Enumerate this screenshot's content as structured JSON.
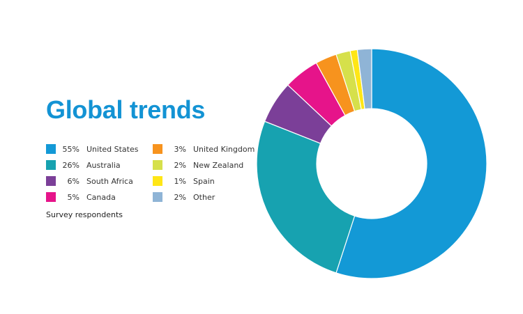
{
  "title": "Global trends",
  "caption": "Survey respondents",
  "colors": {
    "title": "#1393d4",
    "background": "#ffffff"
  },
  "chart_data": {
    "type": "pie",
    "variant": "donut",
    "categories": [
      "United States",
      "Australia",
      "South Africa",
      "Canada",
      "United Kingdom",
      "New Zealand",
      "Spain",
      "Other"
    ],
    "values": [
      55,
      26,
      6,
      5,
      3,
      2,
      1,
      2
    ],
    "value_labels": [
      "55%",
      "26%",
      "6%",
      "5%",
      "3%",
      "2%",
      "1%",
      "2%"
    ],
    "colors": [
      "#1399d6",
      "#17a2b0",
      "#7b3f98",
      "#e6148a",
      "#f7931e",
      "#d6e04b",
      "#ffe616",
      "#8fb4d6"
    ],
    "unit": "%",
    "legend_position": "left",
    "start": "top",
    "direction": "clockwise"
  }
}
